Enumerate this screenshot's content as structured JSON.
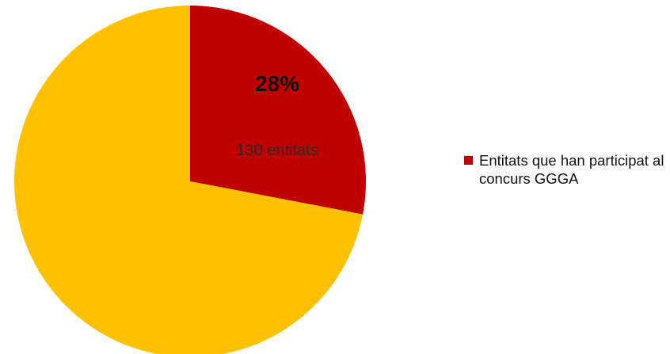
{
  "chart_data": {
    "type": "pie",
    "slices": [
      {
        "name": "Entitats que han participat al concurs GGGA",
        "value": 28,
        "percent_label": "28%",
        "count_label": "130 entitats",
        "color": "#C00000"
      },
      {
        "name": "",
        "value": 72,
        "color": "#FFC000"
      }
    ],
    "legend": {
      "position": "right",
      "entries": [
        {
          "label": "Entitats que han participat al concurs GGGA",
          "color": "#C00000"
        }
      ]
    }
  }
}
